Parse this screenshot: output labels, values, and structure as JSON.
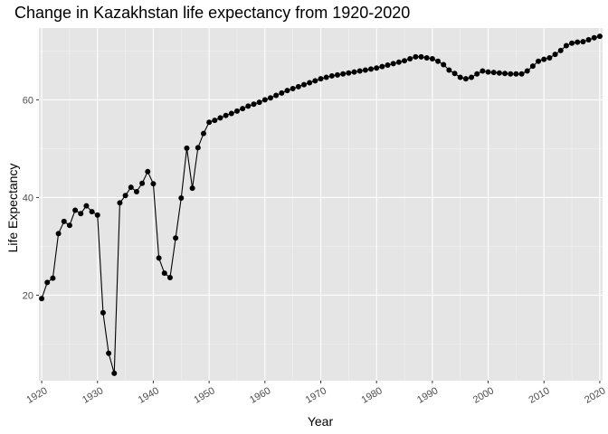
{
  "chart_data": {
    "type": "line",
    "title": "Change in Kazakhstan life expectancy from 1920-2020",
    "xlabel": "Year",
    "ylabel": "Life Expectancy",
    "xlim": [
      1919.5,
      2020.5
    ],
    "ylim": [
      2.5,
      74.7
    ],
    "x_ticks": [
      1920,
      1930,
      1940,
      1950,
      1960,
      1970,
      1980,
      1990,
      2000,
      2010,
      2020
    ],
    "y_ticks": [
      20,
      40,
      60
    ],
    "grid": true,
    "markers": true,
    "colors": {
      "panel": "#e5e5e5",
      "grid_major": "#ffffff",
      "grid_minor": "#f2f2f2",
      "line": "#000000",
      "point": "#000000",
      "tick_mark": "#333333"
    },
    "series": [
      {
        "x": [
          1920,
          1921,
          1922,
          1923,
          1924,
          1925,
          1926,
          1927,
          1928,
          1929,
          1930,
          1931,
          1932,
          1933,
          1934,
          1935,
          1936,
          1937,
          1938,
          1939,
          1940,
          1941,
          1942,
          1943,
          1944,
          1945,
          1946,
          1947,
          1948,
          1949,
          1950,
          1951,
          1952,
          1953,
          1954,
          1955,
          1956,
          1957,
          1958,
          1959,
          1960,
          1961,
          1962,
          1963,
          1964,
          1965,
          1966,
          1967,
          1968,
          1969,
          1970,
          1971,
          1972,
          1973,
          1974,
          1975,
          1976,
          1977,
          1978,
          1979,
          1980,
          1981,
          1982,
          1983,
          1984,
          1985,
          1986,
          1987,
          1988,
          1989,
          1990,
          1991,
          1992,
          1993,
          1994,
          1995,
          1996,
          1997,
          1998,
          1999,
          2000,
          2001,
          2002,
          2003,
          2004,
          2005,
          2006,
          2007,
          2008,
          2009,
          2010,
          2011,
          2012,
          2013,
          2014,
          2015,
          2016,
          2017,
          2018,
          2019,
          2020
        ],
        "values": [
          19.3,
          22.6,
          23.5,
          32.6,
          35.1,
          34.3,
          37.4,
          36.7,
          38.3,
          37.1,
          36.4,
          16.4,
          8.1,
          4.0,
          38.9,
          40.4,
          42.1,
          41.2,
          42.9,
          45.3,
          42.8,
          27.6,
          24.5,
          23.6,
          31.7,
          39.9,
          50.1,
          41.9,
          50.2,
          53.1,
          55.4,
          55.8,
          56.3,
          56.8,
          57.2,
          57.7,
          58.2,
          58.7,
          59.1,
          59.5,
          60.0,
          60.4,
          60.9,
          61.4,
          61.9,
          62.3,
          62.7,
          63.1,
          63.5,
          63.9,
          64.3,
          64.6,
          64.9,
          65.1,
          65.3,
          65.5,
          65.7,
          65.9,
          66.1,
          66.3,
          66.5,
          66.8,
          67.1,
          67.4,
          67.7,
          68.0,
          68.4,
          68.8,
          68.8,
          68.6,
          68.4,
          67.9,
          67.2,
          66.1,
          65.4,
          64.6,
          64.3,
          64.6,
          65.3,
          65.9,
          65.7,
          65.6,
          65.5,
          65.4,
          65.3,
          65.3,
          65.3,
          65.9,
          66.9,
          67.9,
          68.3,
          68.6,
          69.3,
          70.1,
          71.1,
          71.6,
          71.8,
          71.9,
          72.3,
          72.7,
          73.0
        ]
      }
    ]
  }
}
